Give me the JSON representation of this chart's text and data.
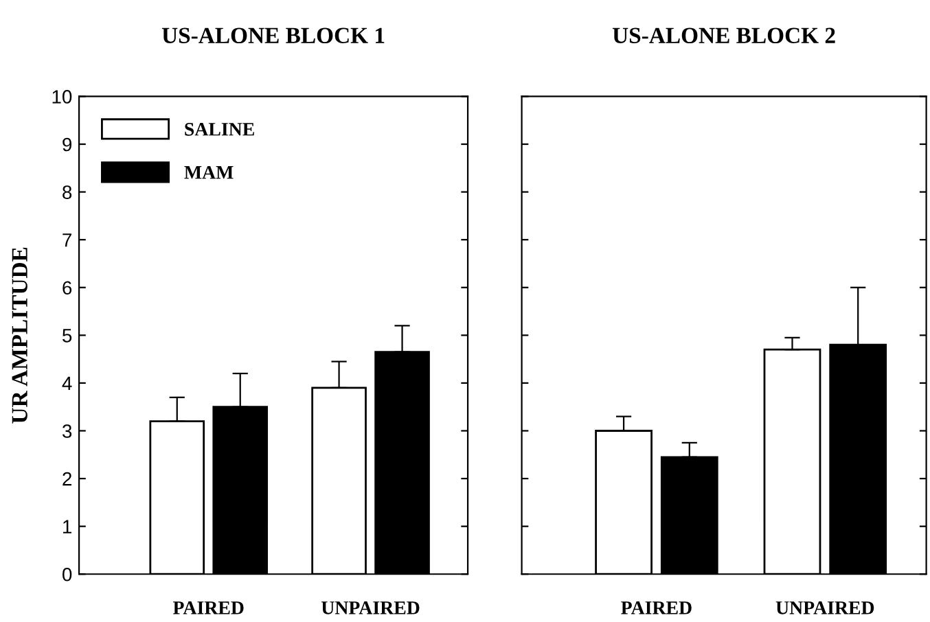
{
  "chart_data": [
    {
      "type": "bar",
      "title": "US-ALONE BLOCK 1",
      "ylabel": "UR AMPLITUDE",
      "categories": [
        "PAIRED",
        "UNPAIRED"
      ],
      "series": [
        {
          "name": "SALINE",
          "color": "#ffffff",
          "values": [
            3.2,
            3.9
          ],
          "errors": [
            [
              3.2,
              3.7
            ],
            [
              3.9,
              4.45
            ]
          ]
        },
        {
          "name": "MAM",
          "color": "#000000",
          "values": [
            3.5,
            4.65
          ],
          "errors": [
            [
              3.5,
              4.2
            ],
            [
              4.65,
              5.2
            ]
          ]
        }
      ],
      "ylim": [
        0,
        10
      ],
      "yticks": [
        0,
        1,
        2,
        3,
        4,
        5,
        6,
        7,
        8,
        9,
        10
      ],
      "legend": "top left",
      "grid": false
    },
    {
      "type": "bar",
      "title": "US-ALONE BLOCK 2",
      "categories": [
        "PAIRED",
        "UNPAIRED"
      ],
      "series": [
        {
          "color": "#ffffff",
          "values": [
            3.0,
            4.7
          ],
          "errors": [
            [
              3.0,
              3.3
            ],
            [
              4.7,
              4.95
            ]
          ]
        },
        {
          "color": "#000000",
          "values": [
            2.45,
            4.8
          ],
          "errors": [
            [
              2.45,
              2.75
            ],
            [
              4.8,
              6.0
            ]
          ]
        }
      ],
      "ylim": [
        0,
        10
      ],
      "yticks": [
        {
          "value": 0,
          "label": null
        },
        {
          "value": 1,
          "label": null
        },
        {
          "value": 2,
          "label": null
        },
        {
          "value": 3,
          "label": null
        },
        {
          "value": 4,
          "label": null
        },
        {
          "value": 5,
          "label": null
        },
        {
          "value": 6,
          "label": null
        },
        {
          "value": 7,
          "label": null
        },
        {
          "value": 8,
          "label": null
        },
        {
          "value": 9,
          "label": null
        },
        {
          "value": 10,
          "label": null
        }
      ],
      "tick_labels": "x",
      "grid": false
    }
  ]
}
